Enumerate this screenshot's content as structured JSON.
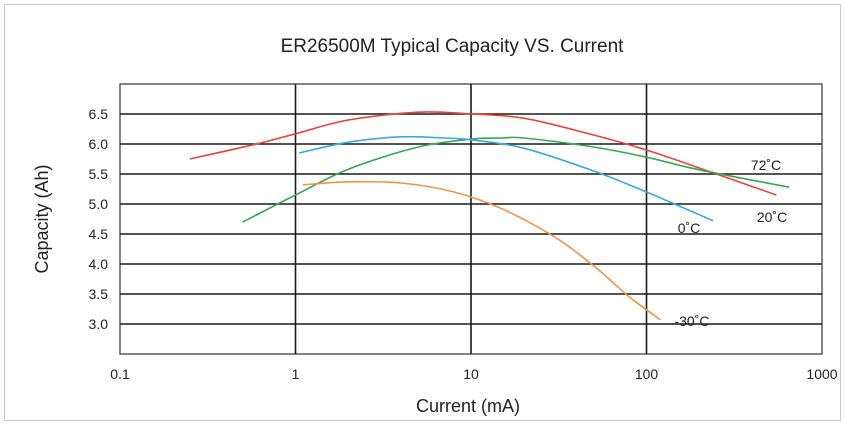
{
  "chart_data": {
    "type": "line",
    "title": "ER26500M Typical Capacity VS. Current",
    "xlabel": "Current (mA)",
    "ylabel": "Capacity (Ah)",
    "x_scale": "log",
    "xlim": [
      0.1,
      1000
    ],
    "ylim": [
      2.5,
      7.0
    ],
    "x_ticks": [
      0.1,
      1,
      10,
      100,
      1000
    ],
    "x_tick_labels": [
      "0.1",
      "1",
      "10",
      "100",
      "1000"
    ],
    "y_ticks": [
      3.0,
      3.5,
      4.0,
      4.5,
      5.0,
      5.5,
      6.0,
      6.5
    ],
    "y_tick_labels": [
      "3.0",
      "3.5",
      "4.0",
      "4.5",
      "5.0",
      "5.5",
      "6.0",
      "6.5"
    ],
    "grid": true,
    "series": [
      {
        "name": "20˚C",
        "color": "#e0453f",
        "x": [
          0.25,
          0.6,
          1.0,
          2.0,
          5.0,
          10,
          20,
          50,
          100,
          200,
          550
        ],
        "y": [
          5.75,
          6.0,
          6.17,
          6.4,
          6.53,
          6.5,
          6.43,
          6.15,
          5.9,
          5.6,
          5.15
        ]
      },
      {
        "name": "72˚C",
        "color": "#3aa655",
        "x": [
          0.5,
          1.0,
          2.0,
          5.0,
          10,
          15,
          20,
          50,
          100,
          200,
          650
        ],
        "y": [
          4.7,
          5.15,
          5.58,
          5.95,
          6.08,
          6.1,
          6.1,
          5.95,
          5.78,
          5.57,
          5.28
        ]
      },
      {
        "name": "0˚C",
        "color": "#39a7e0",
        "x": [
          1.05,
          2.0,
          4.0,
          7.0,
          10,
          20,
          50,
          100,
          240
        ],
        "y": [
          5.85,
          6.03,
          6.12,
          6.1,
          6.07,
          5.93,
          5.55,
          5.2,
          4.72
        ]
      },
      {
        "name": "-30˚C",
        "color": "#f0934a",
        "x": [
          1.1,
          2.0,
          4.0,
          8.0,
          15,
          30,
          50,
          80,
          120
        ],
        "y": [
          5.32,
          5.37,
          5.35,
          5.2,
          4.92,
          4.45,
          3.97,
          3.45,
          3.07
        ]
      }
    ],
    "annotations": [
      {
        "text": "72˚C",
        "series": "72˚C"
      },
      {
        "text": "20˚C",
        "series": "20˚C"
      },
      {
        "text": "0˚C",
        "series": "0˚C"
      },
      {
        "text": "-30˚C",
        "series": "-30˚C"
      }
    ]
  }
}
